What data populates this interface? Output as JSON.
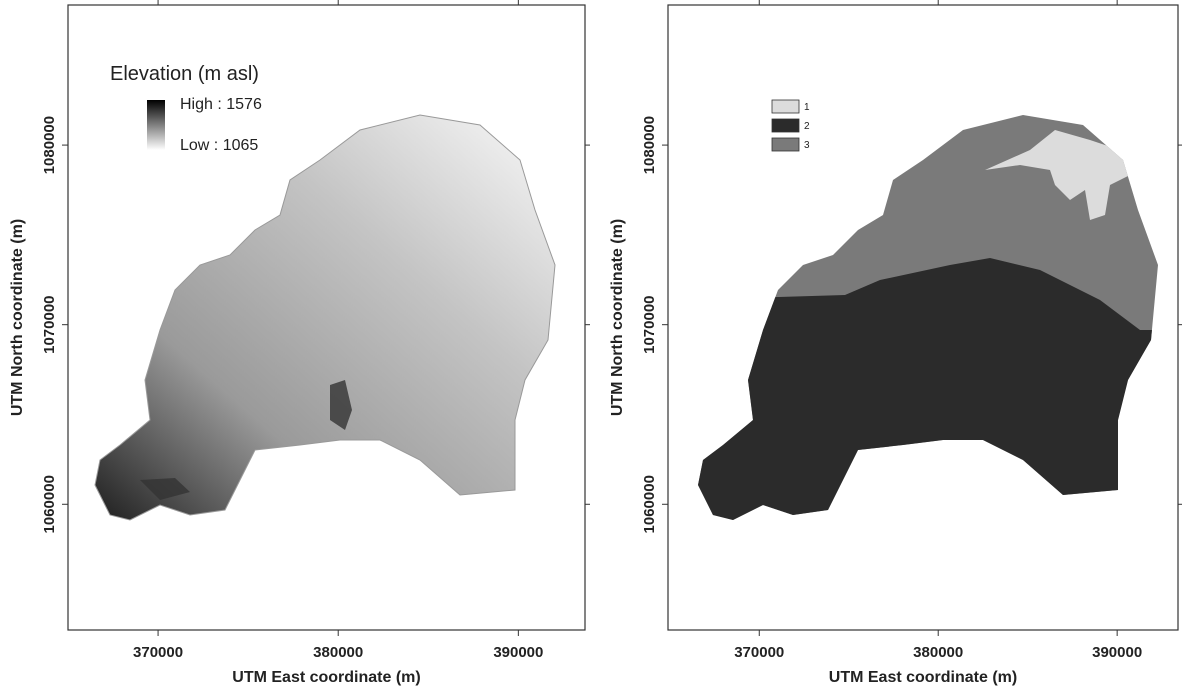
{
  "chart_data": [
    {
      "type": "map",
      "xlabel": "UTM East coordinate (m)",
      "ylabel": "UTM North coordinate (m)",
      "xlim": [
        365000,
        393700
      ],
      "ylim": [
        1053000,
        1087800
      ],
      "xticks": [
        370000,
        380000,
        390000
      ],
      "yticks": [
        1060000,
        1070000,
        1080000
      ],
      "legend": {
        "title": "Elevation (m asl)",
        "max": 1576,
        "max_label": "High : 1576",
        "min": 1065,
        "min_label": "Low : 1065"
      }
    },
    {
      "type": "map",
      "xlabel": "UTM East coordinate (m)",
      "ylabel": "UTM North coordinate (m)",
      "xlim": [
        364900,
        393400
      ],
      "ylim": [
        1053000,
        1087800
      ],
      "xticks": [
        370000,
        380000,
        390000
      ],
      "yticks": [
        1060000,
        1070000,
        1080000
      ],
      "categories": [
        "1",
        "2",
        "3"
      ],
      "colors": [
        "#dcdcdc",
        "#2b2b2b",
        "#7a7a7a"
      ]
    }
  ]
}
